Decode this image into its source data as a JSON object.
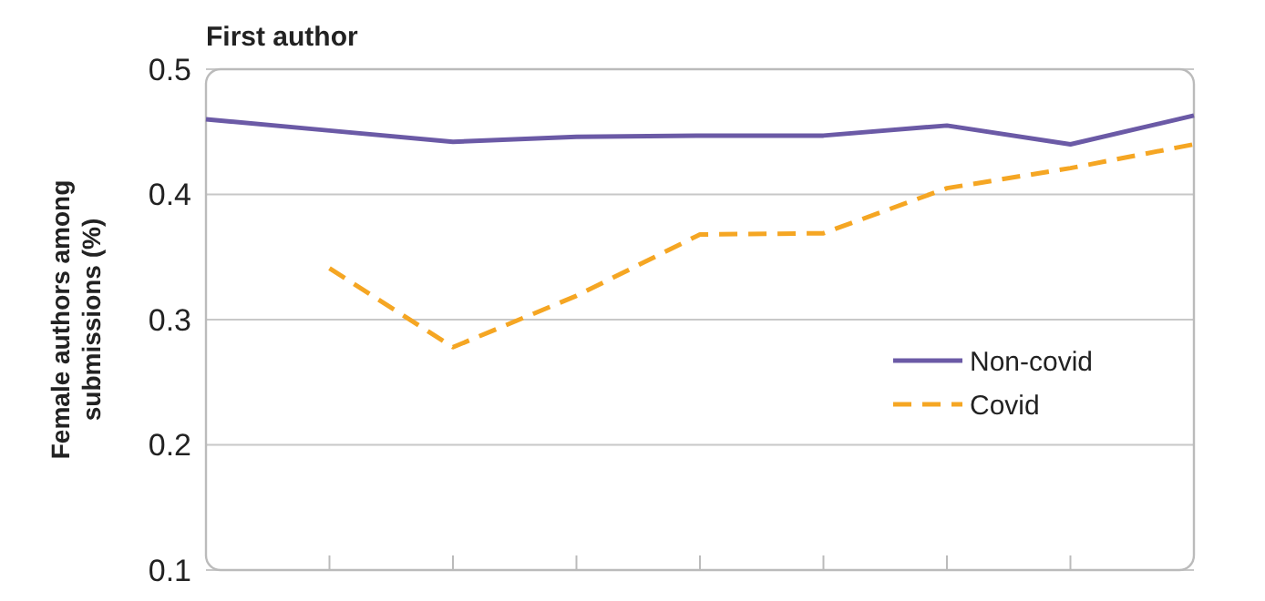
{
  "chart_data": {
    "type": "line",
    "title": "First author",
    "ylabel": "Female authors among submissions (%)",
    "categories": [
      null,
      null,
      null,
      null,
      null,
      null,
      null,
      null,
      null
    ],
    "series": [
      {
        "name": "Non-covid",
        "color": "#6b5aa6",
        "line_style": "solid",
        "values": [
          0.46,
          0.451,
          0.442,
          0.446,
          0.447,
          0.447,
          0.455,
          0.44,
          0.463
        ]
      },
      {
        "name": "Covid",
        "color": "#f5a623",
        "line_style": "dashed",
        "values": [
          null,
          0.341,
          0.278,
          0.319,
          0.368,
          0.369,
          0.405,
          0.421,
          0.44
        ]
      }
    ],
    "ylim": [
      0.1,
      0.5
    ],
    "yticks": [
      0.1,
      0.2,
      0.3,
      0.4,
      0.5
    ],
    "grid": "y",
    "legend": "right",
    "marker": "none"
  }
}
